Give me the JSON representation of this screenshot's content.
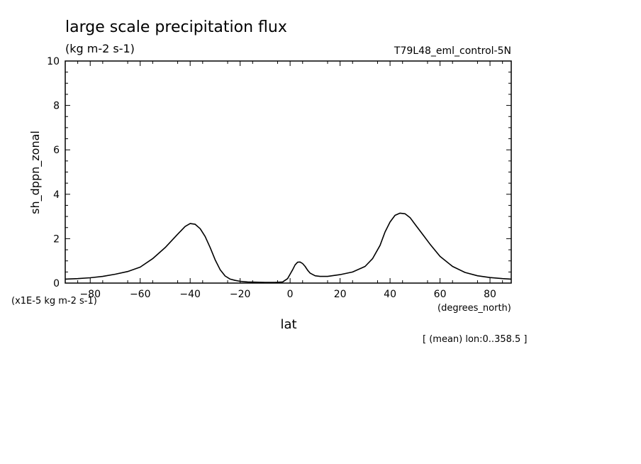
{
  "chart_data": {
    "type": "line",
    "title": "large scale precipitation flux",
    "units": "(kg m-2 s-1)",
    "run_label": "T79L48_eml_control-5N",
    "xlabel": "lat",
    "x_units": "(degrees_north)",
    "ylabel": "sh_dppn_zonal",
    "y_scale_note": "(x1E-5 kg m-2 s-1)",
    "averaging_note": "[ (mean) lon:0..358.5 ]",
    "xlim": [
      -90,
      88.5
    ],
    "ylim": [
      0,
      10
    ],
    "x_ticks": [
      -80,
      -60,
      -40,
      -20,
      0,
      20,
      40,
      60,
      80
    ],
    "y_ticks": [
      0,
      2,
      4,
      6,
      8,
      10
    ],
    "grid": false,
    "series": [
      {
        "x": [
          -90,
          -85,
          -80,
          -75,
          -70,
          -65,
          -60,
          -55,
          -50,
          -45,
          -42,
          -40,
          -38,
          -36,
          -34,
          -32,
          -30,
          -28,
          -26,
          -24,
          -22,
          -20,
          -17,
          -14,
          -10,
          -6,
          -3,
          -1,
          0,
          1,
          2,
          3,
          4,
          5,
          6,
          7,
          8,
          10,
          12,
          15,
          20,
          25,
          30,
          33,
          36,
          38,
          40,
          42,
          44,
          46,
          48,
          50,
          53,
          56,
          60,
          65,
          70,
          75,
          80,
          85,
          88.5
        ],
        "y": [
          0.18,
          0.2,
          0.24,
          0.3,
          0.4,
          0.52,
          0.72,
          1.1,
          1.6,
          2.2,
          2.55,
          2.68,
          2.65,
          2.45,
          2.1,
          1.6,
          1.05,
          0.6,
          0.32,
          0.18,
          0.12,
          0.08,
          0.05,
          0.04,
          0.03,
          0.03,
          0.05,
          0.2,
          0.4,
          0.6,
          0.82,
          0.94,
          0.95,
          0.88,
          0.75,
          0.58,
          0.45,
          0.33,
          0.3,
          0.3,
          0.38,
          0.5,
          0.75,
          1.1,
          1.7,
          2.3,
          2.75,
          3.05,
          3.15,
          3.12,
          2.95,
          2.65,
          2.2,
          1.75,
          1.2,
          0.75,
          0.48,
          0.33,
          0.25,
          0.2,
          0.18
        ]
      }
    ]
  }
}
